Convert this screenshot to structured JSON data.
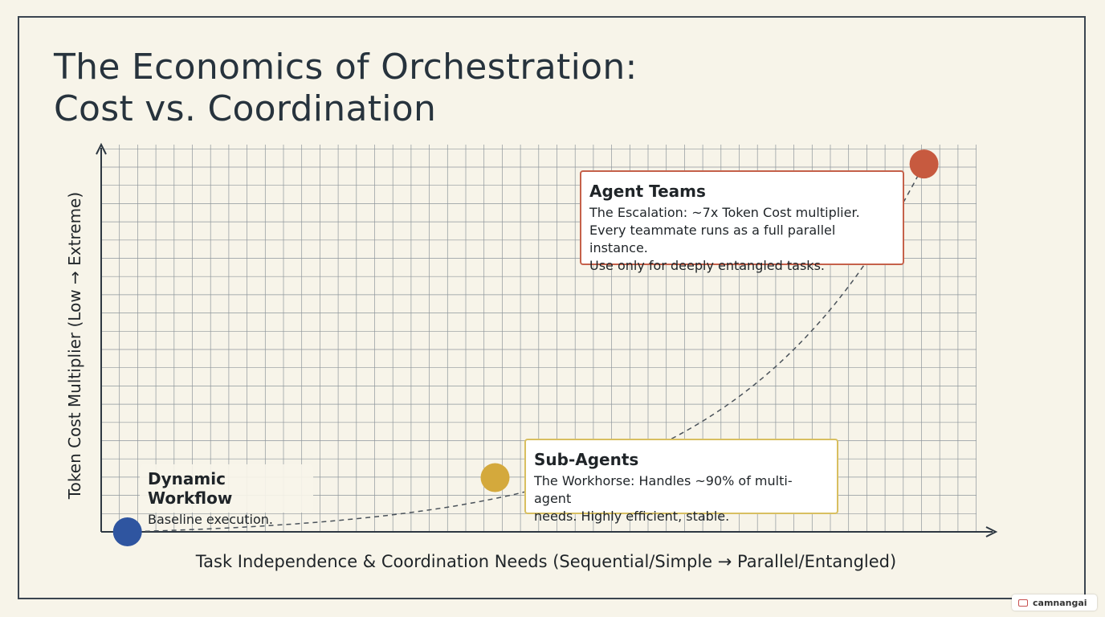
{
  "title": {
    "line1": "The Economics of Orchestration:",
    "line2": "Cost vs. Coordination"
  },
  "chart_data": {
    "type": "scatter",
    "title": "The Economics of Orchestration: Cost vs. Coordination",
    "xlabel": "Task Independence & Coordination Needs (Sequential/Simple → Parallel/Entangled)",
    "ylabel": "Token Cost Multiplier (Low → Extreme)",
    "xlim": [
      0,
      1
    ],
    "ylim": [
      0,
      1
    ],
    "grid": true,
    "legend": "none",
    "points": [
      {
        "label": "Dynamic Workflow",
        "x": 0.03,
        "y": 0.0,
        "color": "#2f55a0"
      },
      {
        "label": "Sub-Agents",
        "x": 0.45,
        "y": 0.14,
        "color": "#d4a93c"
      },
      {
        "label": "Agent Teams",
        "x": 0.94,
        "y": 0.95,
        "color": "#c75a3f"
      }
    ],
    "curve": "dashed exponential trend through points"
  },
  "callouts": {
    "agent_teams": {
      "title": "Agent Teams",
      "lines": [
        "The Escalation: ~7x Token Cost multiplier.",
        "Every teammate runs as a full parallel instance.",
        "Use only for deeply entangled tasks."
      ]
    },
    "sub_agents": {
      "title": "Sub-Agents",
      "lines": [
        "The Workhorse: Handles ~90% of multi-agent",
        "needs. Highly efficient, stable."
      ]
    },
    "dynamic_workflow": {
      "title": "Dynamic Workflow",
      "lines": [
        "Baseline execution."
      ]
    }
  },
  "colors": {
    "background": "#f7f4e9",
    "grid": "#8e969c",
    "axis": "#2e3842",
    "curve": "#4a525a",
    "agent_teams": "#c75a3f",
    "sub_agents": "#d4a93c",
    "dynamic_workflow": "#2f55a0"
  },
  "watermark": {
    "text": "camnangai"
  }
}
